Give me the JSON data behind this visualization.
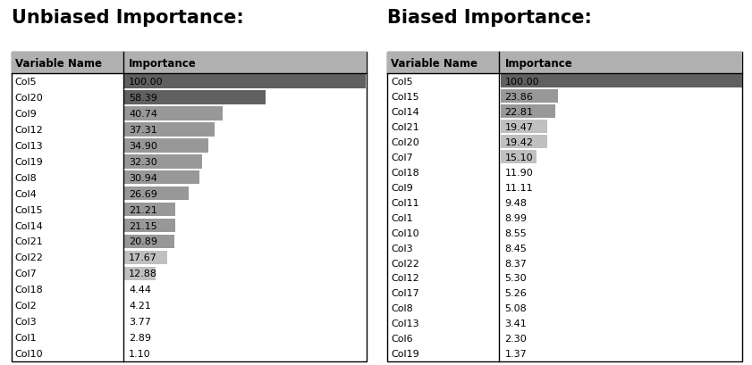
{
  "title_left": "Unbiased Importance:",
  "title_right": "Biased Importance:",
  "left_vars": [
    "Col5",
    "Col20",
    "Col9",
    "Col12",
    "Col13",
    "Col19",
    "Col8",
    "Col4",
    "Col15",
    "Col14",
    "Col21",
    "Col22",
    "Col7",
    "Col18",
    "Col2",
    "Col3",
    "Col1",
    "Col10"
  ],
  "left_vals": [
    100.0,
    58.39,
    40.74,
    37.31,
    34.9,
    32.3,
    30.94,
    26.69,
    21.21,
    21.15,
    20.89,
    17.67,
    12.88,
    4.44,
    4.21,
    3.77,
    2.89,
    1.1
  ],
  "right_vars": [
    "Col5",
    "Col15",
    "Col14",
    "Col21",
    "Col20",
    "Col7",
    "Col18",
    "Col9",
    "Col11",
    "Col1",
    "Col10",
    "Col3",
    "Col22",
    "Col12",
    "Col17",
    "Col8",
    "Col13",
    "Col6",
    "Col19"
  ],
  "right_vals": [
    100.0,
    23.86,
    22.81,
    19.47,
    19.42,
    15.1,
    11.9,
    11.11,
    9.48,
    8.99,
    8.55,
    8.45,
    8.37,
    5.3,
    5.26,
    5.08,
    3.41,
    2.3,
    1.37
  ],
  "header_bg": "#b0b0b0",
  "bar_dark": "#606060",
  "bar_mid": "#989898",
  "bar_light": "#c0c0c0",
  "title_fontsize": 15,
  "header_fontsize": 8.5,
  "data_fontsize": 8.0,
  "bar_max": 100.0
}
